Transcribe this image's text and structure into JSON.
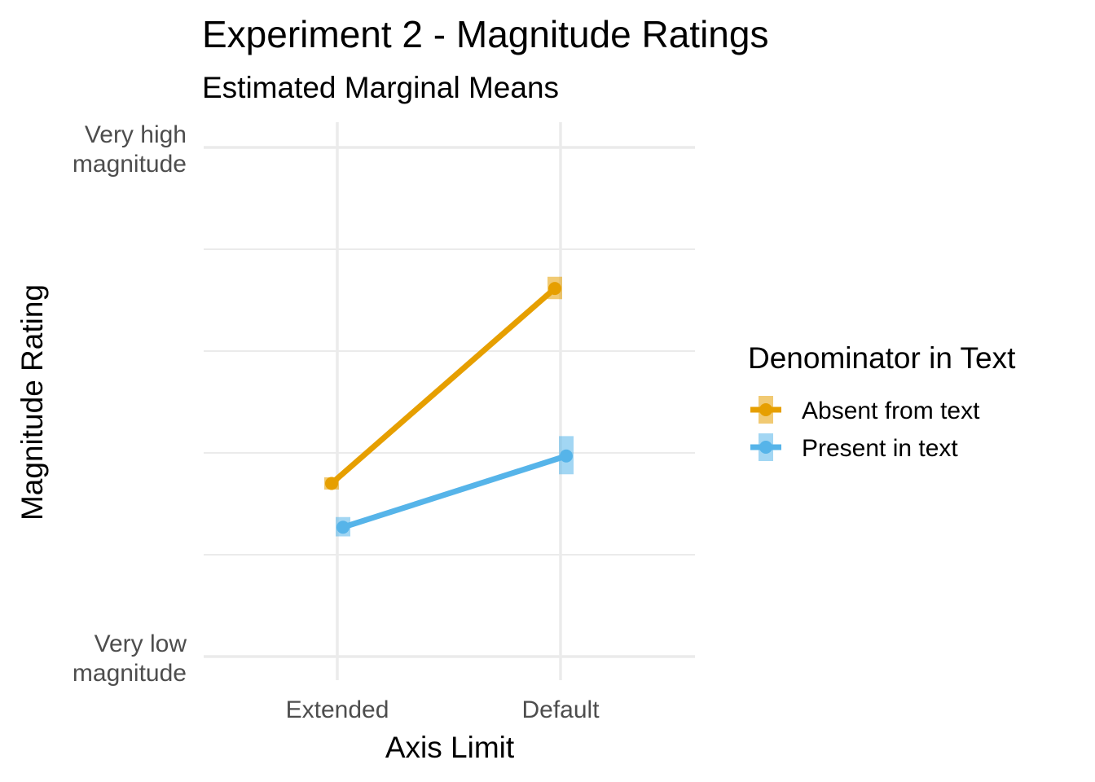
{
  "chart_data": {
    "type": "line",
    "title": "Experiment 2 - Magnitude Ratings",
    "subtitle": "Estimated Marginal Means",
    "xlabel": "Axis Limit",
    "ylabel": "Magnitude Rating",
    "categories": [
      "Extended",
      "Default"
    ],
    "y_tick_labels": [
      {
        "value": 0,
        "line1": "Very low",
        "line2": "magnitude"
      },
      {
        "value": 100,
        "line1": "Very high",
        "line2": "magnitude"
      }
    ],
    "ylim": [
      0,
      100
    ],
    "y_gridlines_major": [
      0,
      100
    ],
    "y_gridlines_minor": [
      20,
      40,
      60,
      80
    ],
    "grid": true,
    "legend": {
      "title": "Denominator in Text",
      "position": "right"
    },
    "series": [
      {
        "name": "Absent from text",
        "color": "#E69F00",
        "values": [
          34.0,
          72.3
        ],
        "ci_lower": [
          32.8,
          70.2
        ],
        "ci_upper": [
          35.2,
          74.6
        ],
        "dodge": -1
      },
      {
        "name": "Present in text",
        "color": "#56B4E9",
        "values": [
          25.4,
          39.4
        ],
        "ci_lower": [
          23.6,
          35.8
        ],
        "ci_upper": [
          27.4,
          43.3
        ],
        "dodge": 1
      }
    ]
  }
}
